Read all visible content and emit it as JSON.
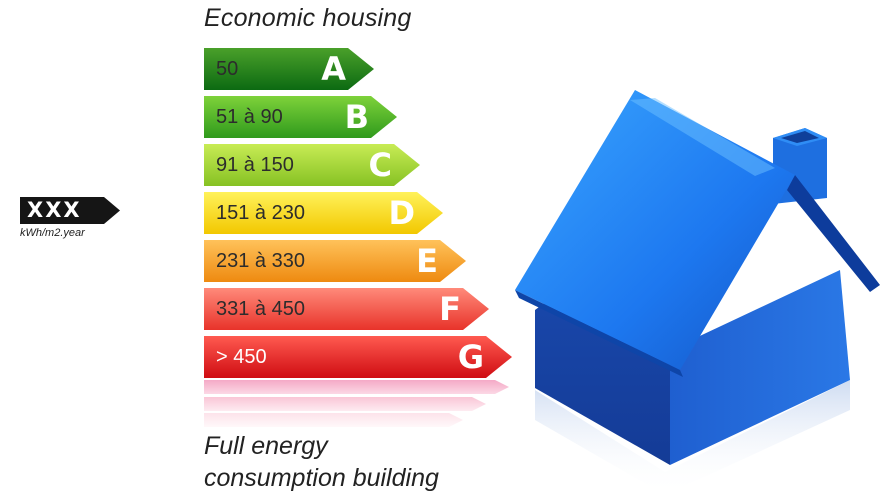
{
  "top_caption": "Economic housing",
  "bottom_caption_line1": "Full energy",
  "bottom_caption_line2": "consumption building",
  "indicator": {
    "value": "XXX",
    "unit": "kWh/m2.year"
  },
  "bands": [
    {
      "letter": "A",
      "range": "50",
      "color_top": "#4aa02a",
      "color_bottom": "#0c6a12"
    },
    {
      "letter": "B",
      "range": "51 à 90",
      "color_top": "#7ed23a",
      "color_bottom": "#2f9a1c"
    },
    {
      "letter": "C",
      "range": "91 à 150",
      "color_top": "#c8ec55",
      "color_bottom": "#86c223"
    },
    {
      "letter": "D",
      "range": "151 à 230",
      "color_top": "#fff25a",
      "color_bottom": "#f2c800"
    },
    {
      "letter": "E",
      "range": "231 à 330",
      "color_top": "#ffc25a",
      "color_bottom": "#ee8a10"
    },
    {
      "letter": "F",
      "range": "331 à 450",
      "color_top": "#ff8a7a",
      "color_bottom": "#e8332a"
    },
    {
      "letter": "G",
      "range": "> 450",
      "color_top": "#ff5a50",
      "color_bottom": "#cf0c12"
    }
  ],
  "house_colors": {
    "roof_light": "#2f9bff",
    "roof_dark": "#1257c8",
    "wall_front": "#1a4fb8",
    "wall_side": "#2d7de8"
  }
}
